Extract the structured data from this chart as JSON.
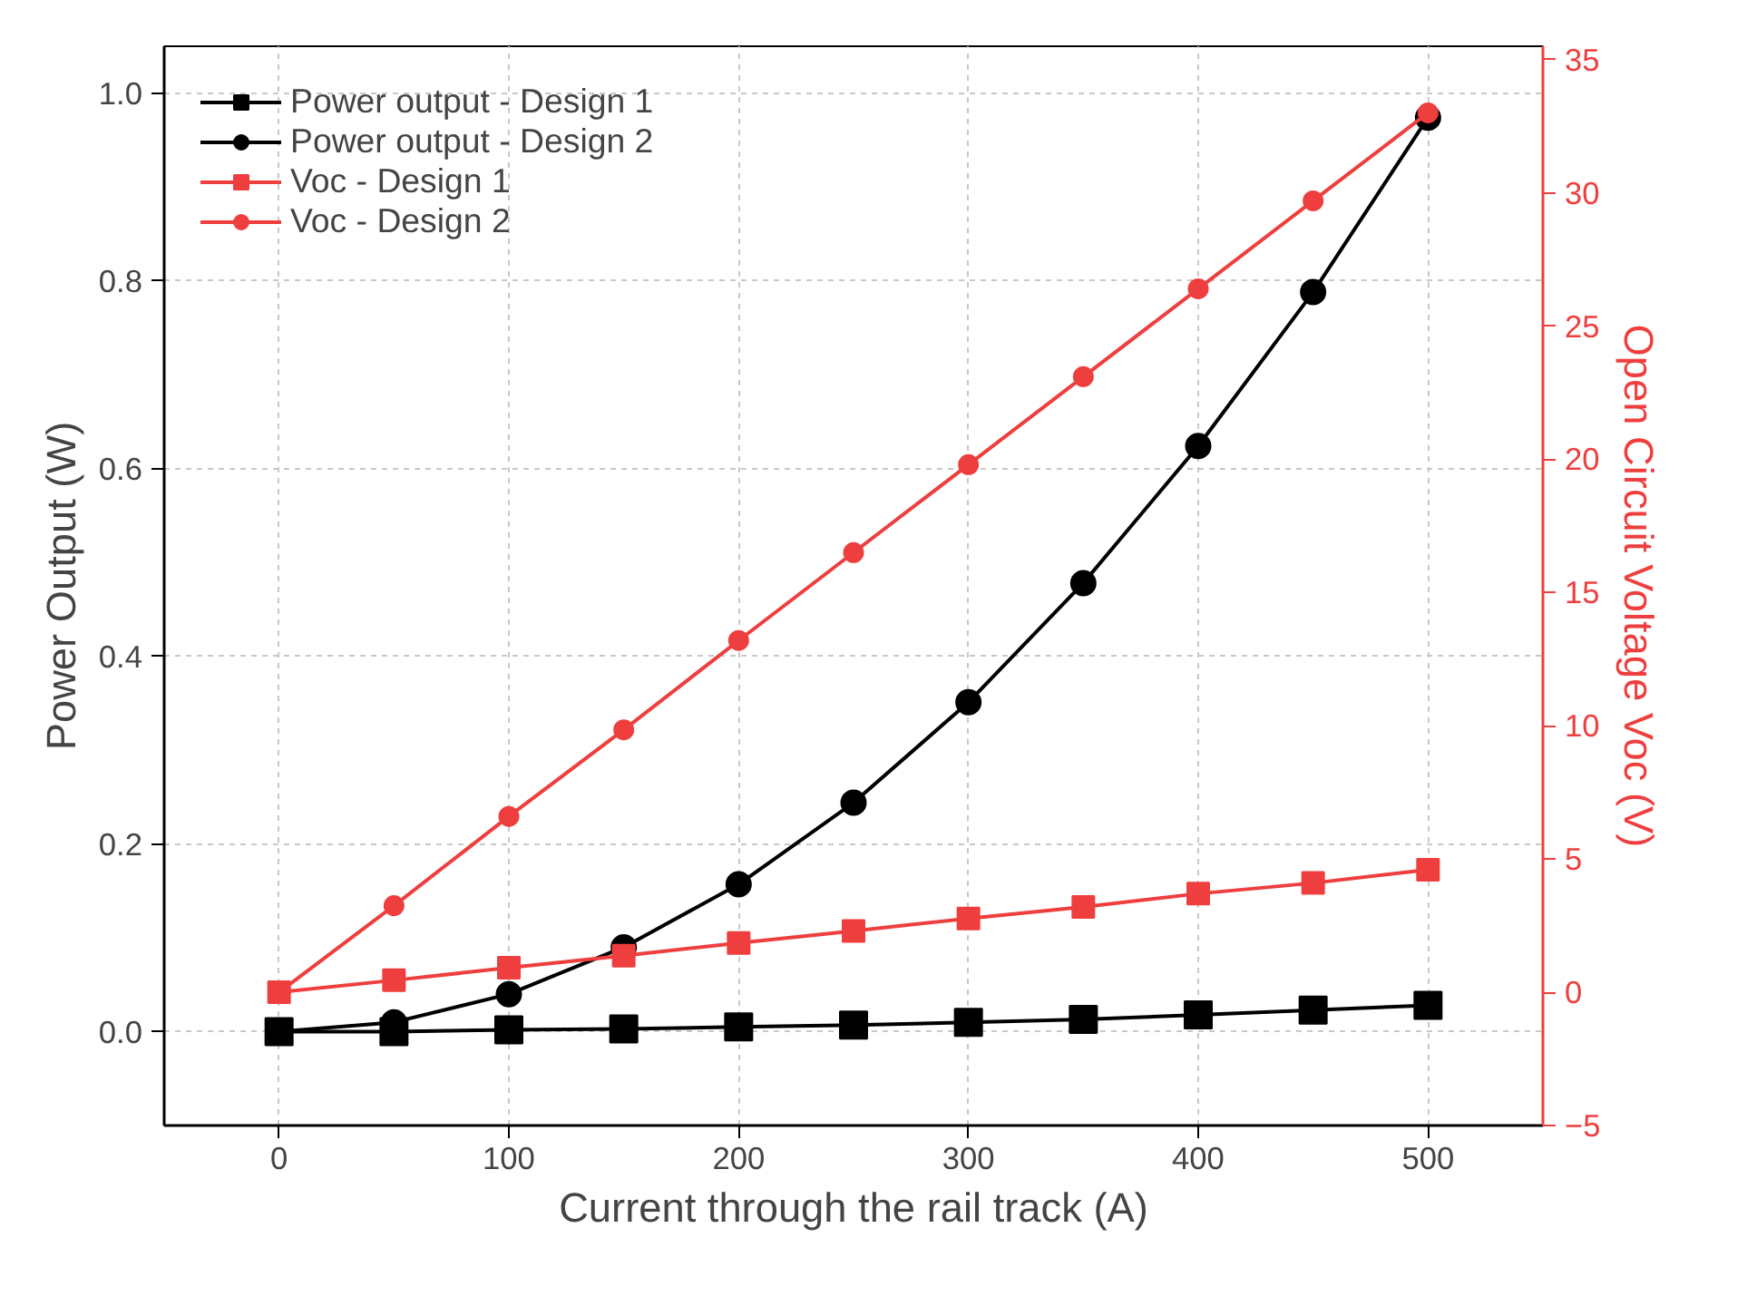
{
  "chart_data": {
    "type": "line",
    "xlabel": "Current through the rail track (A)",
    "ylabel": "Power Output (W)",
    "y2label": "Open Circuit Voltage Voc (V)",
    "x": [
      0,
      50,
      100,
      150,
      200,
      250,
      300,
      350,
      400,
      450,
      500
    ],
    "xlim": [
      -50,
      550
    ],
    "xticks": [
      0,
      100,
      200,
      300,
      400,
      500
    ],
    "ylim": [
      -0.1,
      1.05
    ],
    "yticks": [
      {
        "value": 0,
        "label": "0.0"
      },
      0.2,
      0.4,
      0.6,
      0.8,
      {
        "value": 1,
        "label": "1.0"
      }
    ],
    "y2lim": [
      -5,
      35.5
    ],
    "y2ticks": [
      -5,
      0,
      5,
      10,
      15,
      20,
      25,
      30,
      35
    ],
    "grid": true,
    "legend": "top left",
    "line_style": "solid",
    "series": [
      {
        "name": "Power output - Design 1",
        "color": "#000000",
        "marker": "square",
        "values": [
          0,
          0,
          0.002,
          0.003,
          0.005,
          0.007,
          0.01,
          0.013,
          0.018,
          0.023,
          0.028
        ]
      },
      {
        "name": "Power output - Design 2",
        "color": "#000000",
        "marker": "circle",
        "values": [
          0,
          0.01,
          0.04,
          0.09,
          0.157,
          0.244,
          0.351,
          0.478,
          0.624,
          0.788,
          0.974
        ]
      },
      {
        "name": "Voc - Design 1",
        "color": "#ef3e3e",
        "marker": "square",
        "axis": "y2",
        "values": [
          0,
          0.45,
          0.92,
          1.37,
          1.85,
          2.3,
          2.77,
          3.2,
          3.7,
          4.1,
          4.6
        ]
      },
      {
        "name": "Voc - Design 2",
        "color": "#ef3e3e",
        "marker": "circle",
        "axis": "y2",
        "values": [
          0,
          3.25,
          6.6,
          9.85,
          13.2,
          16.5,
          19.8,
          23.1,
          26.4,
          29.7,
          33
        ]
      }
    ]
  }
}
